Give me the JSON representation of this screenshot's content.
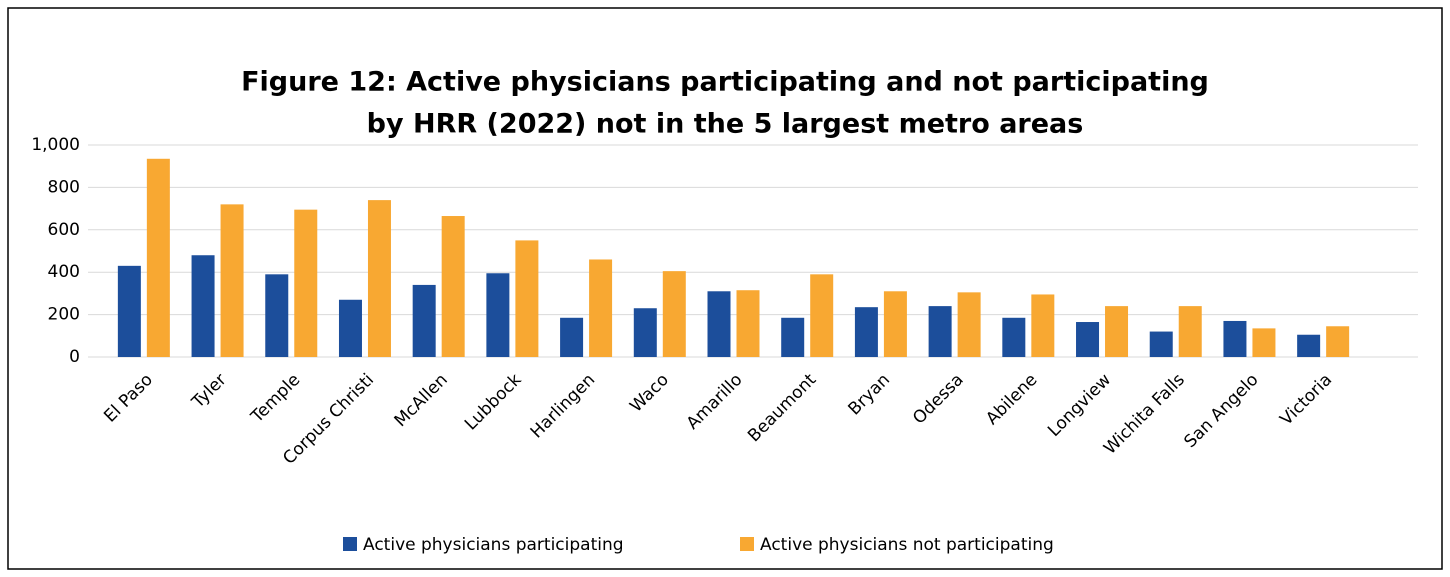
{
  "chart_data": {
    "type": "bar",
    "title": [
      "Figure 12: Active physicians participating and not participating",
      "by HRR (2022) not in the 5 largest metro areas"
    ],
    "categories": [
      "El Paso",
      "Tyler",
      "Temple",
      "Corpus Christi",
      "McAllen",
      "Lubbock",
      "Harlingen",
      "Waco",
      "Amarillo",
      "Beaumont",
      "Bryan",
      "Odessa",
      "Abilene",
      "Longview",
      "Wichita Falls",
      "San Angelo",
      "Victoria"
    ],
    "series": [
      {
        "name": "Active physicians participating",
        "color": "#1c4e9b",
        "values": [
          430,
          480,
          390,
          270,
          340,
          395,
          185,
          230,
          310,
          185,
          235,
          240,
          185,
          165,
          120,
          170,
          105
        ]
      },
      {
        "name": "Active physicians not participating",
        "color": "#f8a832",
        "values": [
          935,
          720,
          695,
          740,
          665,
          550,
          460,
          405,
          315,
          390,
          310,
          305,
          295,
          240,
          240,
          135,
          145
        ]
      }
    ],
    "ylim": [
      0,
      1000
    ],
    "yticks": [
      0,
      200,
      400,
      600,
      800,
      {
        "value": 1000,
        "label": "1,000"
      }
    ],
    "grid": true,
    "legend": "bottom"
  }
}
